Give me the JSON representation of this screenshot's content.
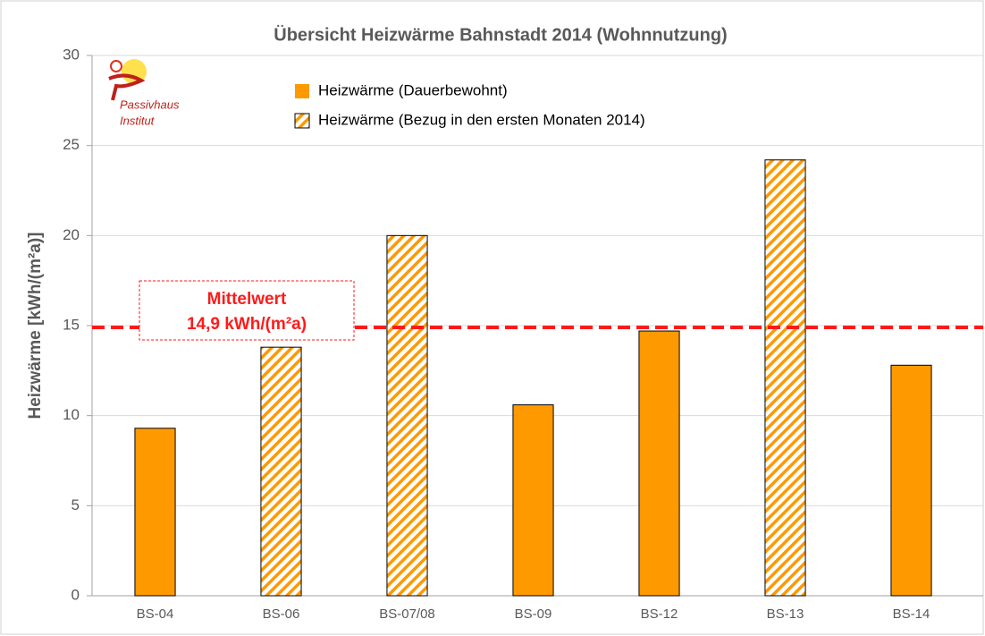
{
  "chart_data": {
    "type": "bar",
    "title": "Übersicht Heizwärme  Bahnstadt 2014 (Wohnnutzung)",
    "y_label": "Heizwärme  [kWh/(m²a)]",
    "categories": [
      "BS-04",
      "BS-06",
      "BS-07/08",
      "BS-09",
      "BS-12",
      "BS-13",
      "BS-14"
    ],
    "series": [
      {
        "name": "Heizwärme (Dauerbewohnt)",
        "color": "#ff9900",
        "hatched": false,
        "values": [
          9.3,
          null,
          null,
          10.6,
          14.7,
          null,
          12.8
        ]
      },
      {
        "name": "Heizwärme (Bezug in den ersten Monaten 2014)",
        "color": "#ff9900",
        "hatched": true,
        "values": [
          null,
          13.8,
          20.0,
          null,
          null,
          24.2,
          null
        ]
      }
    ],
    "ylim": [
      0,
      30
    ],
    "yticks": [
      0,
      5,
      10,
      15,
      20,
      25,
      30
    ],
    "grid": true,
    "mean_line": {
      "value": 14.9,
      "color": "#ff1a1a",
      "label_title": "Mittelwert",
      "label": "14,9 kWh/(m²a)"
    },
    "logo": [
      "Passivhaus",
      "Institut"
    ]
  }
}
